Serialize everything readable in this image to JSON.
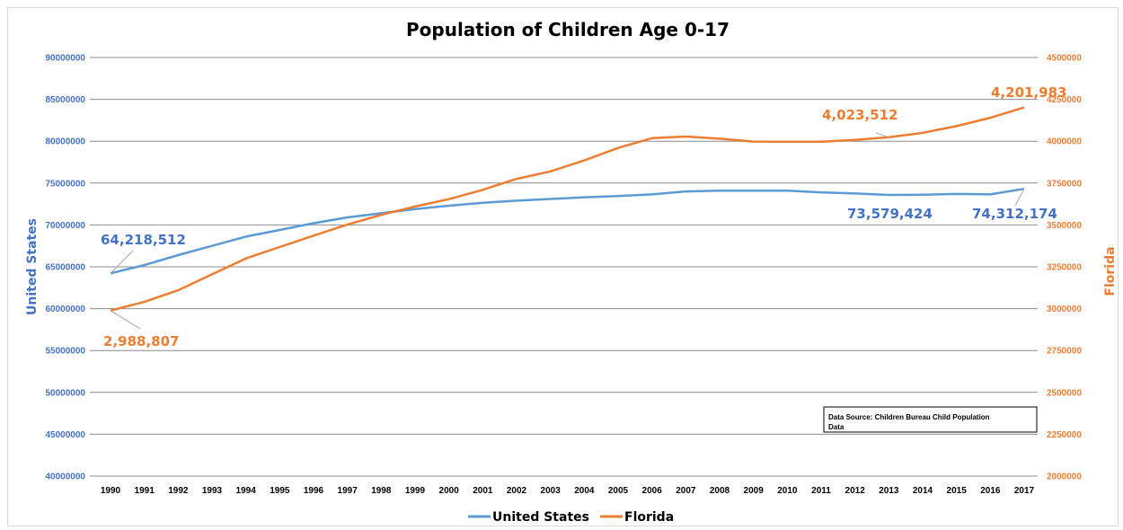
{
  "chart_data": {
    "type": "line",
    "title": "Population of Children Age 0-17",
    "xlabel": "",
    "ylabel": "United States",
    "y2label": "Florida",
    "x": [
      "1990",
      "1991",
      "1992",
      "1993",
      "1994",
      "1995",
      "1996",
      "1997",
      "1998",
      "1999",
      "2000",
      "2001",
      "2002",
      "2003",
      "2004",
      "2005",
      "2006",
      "2007",
      "2008",
      "2009",
      "2010",
      "2011",
      "2012",
      "2013",
      "2014",
      "2015",
      "2016",
      "2017"
    ],
    "ylim": [
      40000000,
      90000000
    ],
    "y_ticks": [
      "40000000",
      "45000000",
      "50000000",
      "55000000",
      "60000000",
      "65000000",
      "70000000",
      "75000000",
      "80000000",
      "85000000",
      "90000000"
    ],
    "y2lim": [
      2000000,
      4500000
    ],
    "y2_ticks": [
      "2000000",
      "2250000",
      "2500000",
      "2750000",
      "3000000",
      "3250000",
      "3500000",
      "3750000",
      "4000000",
      "4250000",
      "4500000"
    ],
    "grid": true,
    "legend_position": "bottom",
    "series": [
      {
        "name": "United States",
        "axis": "left",
        "color": "#5b9bd5",
        "values": [
          64218512,
          65200000,
          66400000,
          67500000,
          68600000,
          69400000,
          70200000,
          70900000,
          71400000,
          71900000,
          72300000,
          72650000,
          72900000,
          73100000,
          73300000,
          73450000,
          73650000,
          74000000,
          74100000,
          74100000,
          74100000,
          73900000,
          73750000,
          73579424,
          73600000,
          73700000,
          73650000,
          74312174
        ]
      },
      {
        "name": "Florida",
        "axis": "right",
        "color": "#ed7d31",
        "values": [
          2988807,
          3040000,
          3110000,
          3205000,
          3300000,
          3368000,
          3436000,
          3502000,
          3560000,
          3610000,
          3654000,
          3710000,
          3775000,
          3820000,
          3885000,
          3960000,
          4018000,
          4028000,
          4015000,
          3998000,
          3997000,
          3997000,
          4008000,
          4023512,
          4050000,
          4090000,
          4140000,
          4201983
        ]
      }
    ],
    "annotations": [
      {
        "text": "64,218,512",
        "series": "United States",
        "x": "1990"
      },
      {
        "text": "73,579,424",
        "series": "United States",
        "x": "2013"
      },
      {
        "text": "74,312,174",
        "series": "United States",
        "x": "2017"
      },
      {
        "text": "2,988,807",
        "series": "Florida",
        "x": "1990"
      },
      {
        "text": "4,023,512",
        "series": "Florida",
        "x": "2013"
      },
      {
        "text": "4,201,983",
        "series": "Florida",
        "x": "2017"
      }
    ],
    "note": "Data Source: Children Bureau Child Population Data"
  }
}
